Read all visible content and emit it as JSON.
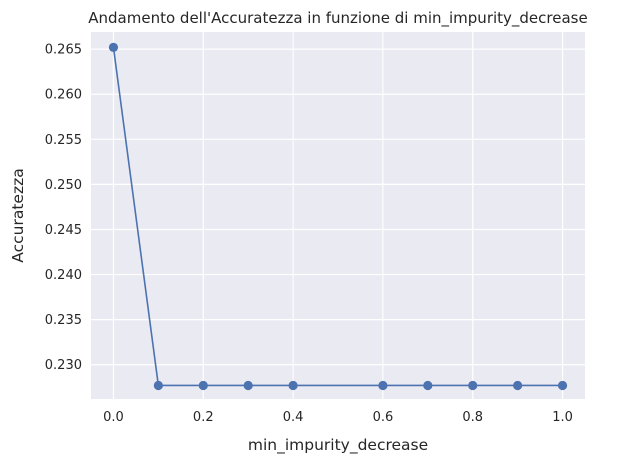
{
  "chart_data": {
    "type": "line",
    "title": "Andamento dell'Accuratezza in funzione di min_impurity_decrease",
    "xlabel": "min_impurity_decrease",
    "ylabel": "Accuratezza",
    "xlim": [
      -0.05,
      1.05
    ],
    "ylim": [
      0.2262,
      0.2669
    ],
    "x_ticks": [
      0.0,
      0.2,
      0.4,
      0.6,
      0.8,
      1.0
    ],
    "x_tick_labels": [
      "0.0",
      "0.2",
      "0.4",
      "0.6",
      "0.8",
      "1.0"
    ],
    "y_ticks": [
      0.23,
      0.235,
      0.24,
      0.245,
      0.25,
      0.255,
      0.26,
      0.265
    ],
    "y_tick_labels": [
      "0.230",
      "0.235",
      "0.240",
      "0.245",
      "0.250",
      "0.255",
      "0.260",
      "0.265"
    ],
    "grid": true,
    "series": [
      {
        "x": [
          0.0,
          0.1,
          0.2,
          0.3,
          0.4,
          0.6,
          0.7,
          0.8,
          0.9,
          1.0
        ],
        "y": [
          0.2652,
          0.2277,
          0.2277,
          0.2277,
          0.2277,
          0.2277,
          0.2277,
          0.2277,
          0.2277,
          0.2277
        ],
        "color": "#4c72b0",
        "marker": "circle"
      }
    ],
    "colors": {
      "plot_background": "#eaeaf2",
      "grid": "#ffffff",
      "line": "#4c72b0",
      "text": "#262626"
    }
  }
}
